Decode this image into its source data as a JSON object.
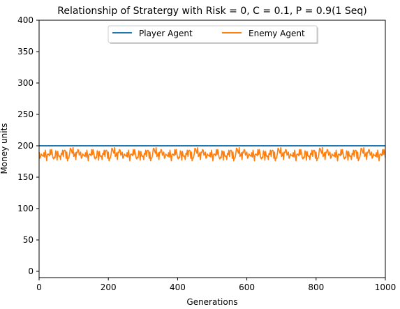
{
  "chart_data": {
    "type": "line",
    "title": "Relationship of Stratergy with Risk = 0, C = 0.1, P = 0.9(1 Seq)",
    "xlabel": "Generations",
    "ylabel": "Money units",
    "xlim": [
      0,
      1000
    ],
    "ylim": [
      -10,
      400
    ],
    "x_ticks": [
      "0",
      "200",
      "400",
      "600",
      "800",
      "1000"
    ],
    "y_ticks": [
      "0",
      "50",
      "100",
      "150",
      "200",
      "250",
      "300",
      "350",
      "400"
    ],
    "grid": false,
    "legend": {
      "placement": "top-center",
      "ncol": 2
    },
    "series": [
      {
        "name": "Player Agent",
        "color": "#1f77b4",
        "x": [
          0,
          1000
        ],
        "values": [
          200,
          200
        ]
      },
      {
        "name": "Enemy Agent",
        "color": "#ff7f0e",
        "x_start": 0,
        "x_step": 1,
        "values_description_min": 175,
        "values_description_max": 200,
        "values_mean": 187,
        "values": [
          190,
          186,
          181,
          193,
          177,
          189,
          194,
          183,
          180,
          191,
          187,
          185,
          192,
          178,
          188,
          196,
          182,
          184,
          190,
          176,
          193,
          187,
          181,
          195,
          186,
          183,
          189,
          179,
          192,
          185,
          184,
          191,
          187,
          180,
          194,
          182,
          188,
          185,
          178,
          193,
          186,
          190,
          183,
          181,
          197,
          184,
          188,
          185,
          192,
          176,
          189,
          186,
          183,
          194,
          180,
          187,
          190,
          184,
          182,
          193
        ]
      }
    ]
  }
}
